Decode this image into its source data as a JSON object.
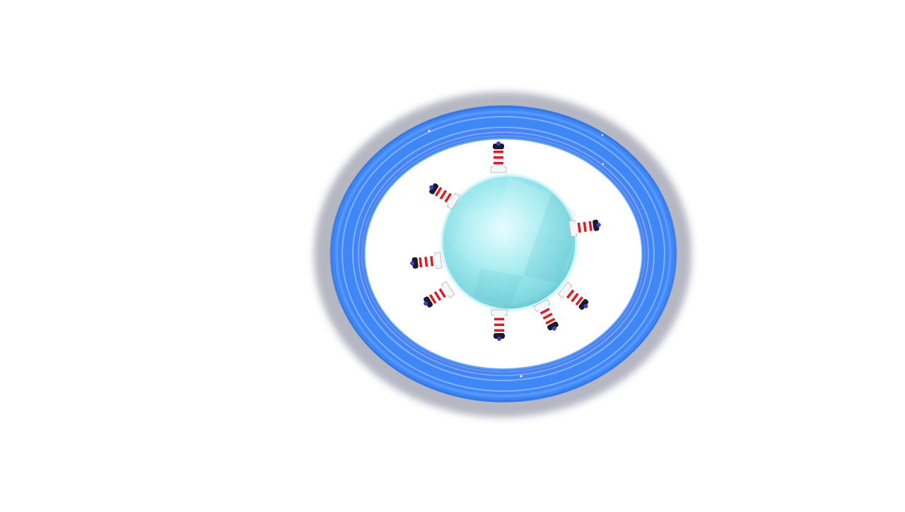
{
  "scene": {
    "background_color": "#ffffff",
    "water_ring_color": "#3f86f6",
    "water_ring_highlight_color": "#86b6ff",
    "planet_color": "#9fe9ef",
    "planet_highlight_color": "#d8fbfd",
    "lighthouse_stripe_color": "#d81f26",
    "lighthouse_base_color": "#f4f6f8",
    "lighthouse_cap_color": "#1b1b2a",
    "lighthouse_lamp_color": "#3a3fd0",
    "lighthouse_count": 8
  }
}
